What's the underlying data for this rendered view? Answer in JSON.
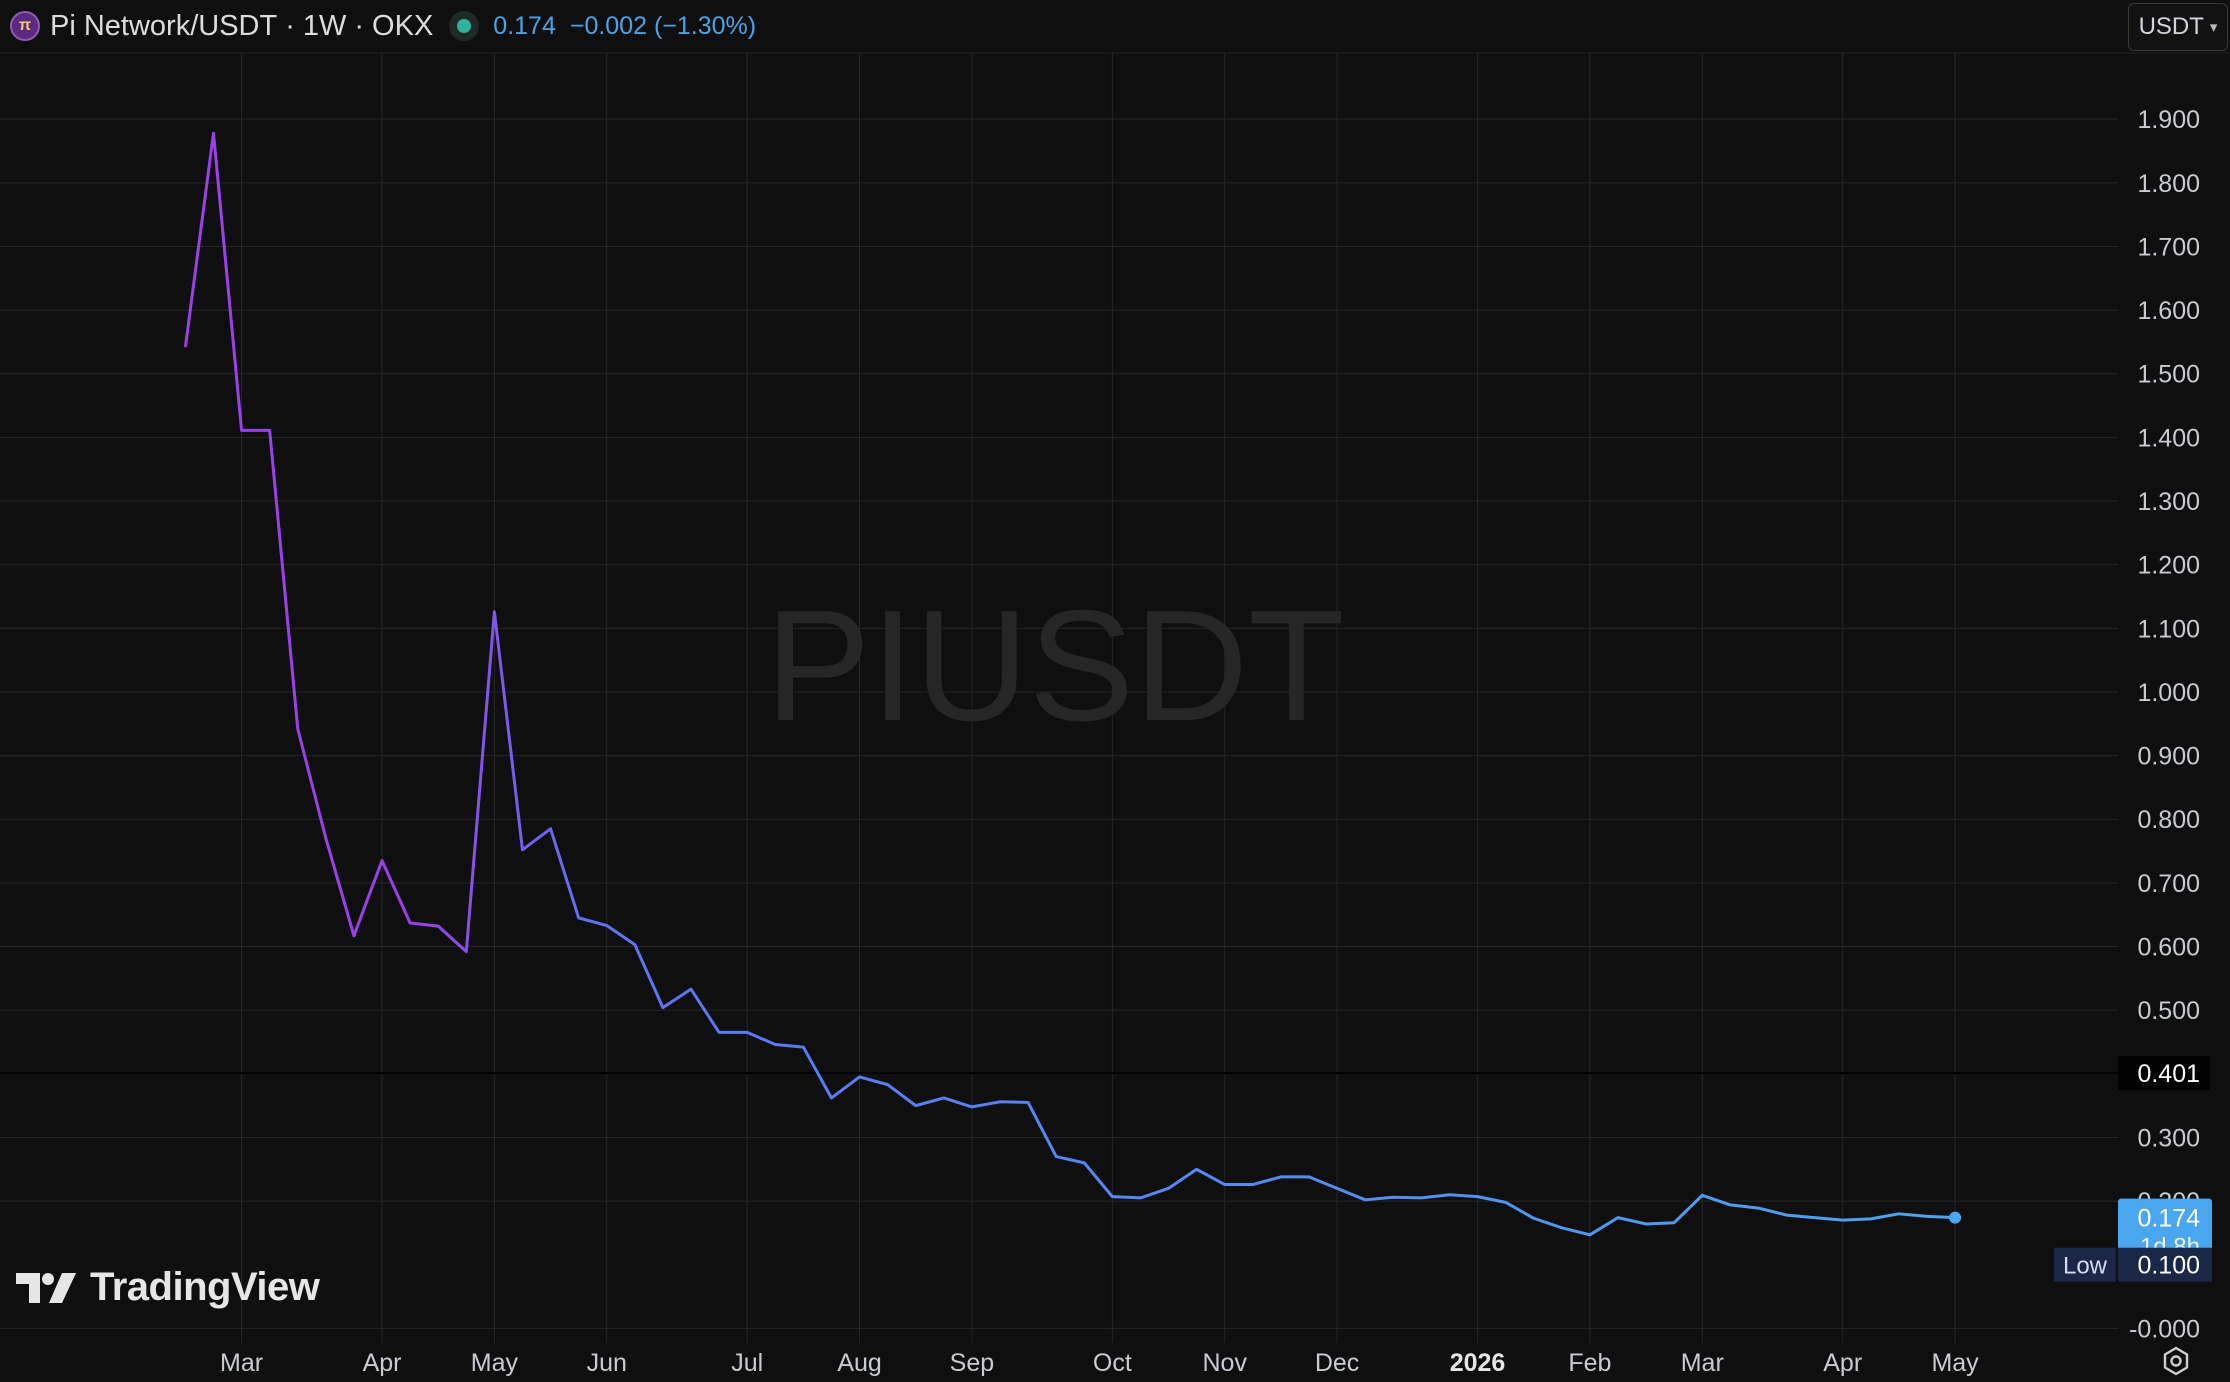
{
  "header": {
    "symbol_title": "Pi Network/USDT",
    "separator": "·",
    "interval": "1W",
    "exchange": "OKX",
    "price": "0.174",
    "change": "−0.002 (−1.30%)",
    "coin_icon": "pi-coin-icon",
    "status_icon": "market-status-dot"
  },
  "currency_selector": {
    "label": "USDT",
    "icon": "chevron-down-icon"
  },
  "watermark": "PIUSDT",
  "brand": {
    "logo_icon": "tradingview-logo-icon",
    "name": "TradingView"
  },
  "footer": {
    "settings_icon": "settings-gear-icon"
  },
  "colors": {
    "background": "#0f0f0f",
    "grid": "#262626",
    "line_start": "#9b3fe8",
    "line_mid": "#5b74f2",
    "line_end": "#4aa7ef",
    "price_badge": "#4aa7ef",
    "low_badge": "#1a2747",
    "text": "#d1d4dc"
  },
  "chart_data": {
    "type": "line",
    "title": "Pi Network/USDT · 1W · OKX",
    "xlabel": "",
    "ylabel": "",
    "ylim": [
      -0.023,
      2.004
    ],
    "y_ticks": [
      "1.900",
      "1.800",
      "1.700",
      "1.600",
      "1.500",
      "1.400",
      "1.300",
      "1.200",
      "1.100",
      "1.000",
      "0.900",
      "0.800",
      "0.700",
      "0.600",
      "0.500",
      "0.300",
      "-0.000"
    ],
    "y_tick_values": [
      1.9,
      1.8,
      1.7,
      1.6,
      1.5,
      1.4,
      1.3,
      1.2,
      1.1,
      1.0,
      0.9,
      0.8,
      0.7,
      0.6,
      0.5,
      0.3,
      0.0
    ],
    "y_hidden_tick": "0.200",
    "x_ticks": [
      {
        "label": "Mar",
        "week": 2,
        "bold": false
      },
      {
        "label": "Apr",
        "week": 7,
        "bold": false
      },
      {
        "label": "May",
        "week": 11,
        "bold": false
      },
      {
        "label": "Jun",
        "week": 15,
        "bold": false
      },
      {
        "label": "Jul",
        "week": 20,
        "bold": false
      },
      {
        "label": "Aug",
        "week": 24,
        "bold": false
      },
      {
        "label": "Sep",
        "week": 28,
        "bold": false
      },
      {
        "label": "Oct",
        "week": 33,
        "bold": false
      },
      {
        "label": "Nov",
        "week": 37,
        "bold": false
      },
      {
        "label": "Dec",
        "week": 41,
        "bold": false
      },
      {
        "label": "2026",
        "week": 46,
        "bold": true
      },
      {
        "label": "Feb",
        "week": 50,
        "bold": false
      },
      {
        "label": "Mar",
        "week": 54,
        "bold": false
      },
      {
        "label": "Apr",
        "week": 59,
        "bold": false
      },
      {
        "label": "May",
        "week": 63,
        "bold": false
      }
    ],
    "x_range_weeks": [
      -6.6,
      68.8
    ],
    "series": [
      {
        "values": [
          1.542,
          1.878,
          1.411,
          1.411,
          0.942,
          0.77,
          0.617,
          0.735,
          0.637,
          0.632,
          0.592,
          1.126,
          0.752,
          0.785,
          0.645,
          0.633,
          0.603,
          0.504,
          0.533,
          0.465,
          0.465,
          0.446,
          0.442,
          0.362,
          0.395,
          0.383,
          0.35,
          0.362,
          0.348,
          0.356,
          0.355,
          0.27,
          0.26,
          0.207,
          0.205,
          0.22,
          0.25,
          0.226,
          0.226,
          0.238,
          0.238,
          0.22,
          0.202,
          0.206,
          0.205,
          0.21,
          0.207,
          0.198,
          0.173,
          0.158,
          0.147,
          0.174,
          0.164,
          0.166,
          0.209,
          0.194,
          0.189,
          0.178,
          0.174,
          0.17,
          0.172,
          0.18,
          0.176,
          0.174
        ]
      }
    ],
    "crosshair_value": "0.401",
    "last_price": "0.174",
    "countdown": "1d 8h",
    "low_label": "Low",
    "low_value": "0.100"
  }
}
